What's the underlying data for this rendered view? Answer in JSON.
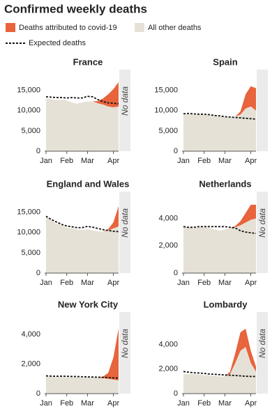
{
  "title": "Confirmed weekly deaths",
  "chart_data": [
    {
      "type": "area",
      "title": "France",
      "categories": [
        "Jan",
        null,
        null,
        null,
        "Feb",
        null,
        null,
        null,
        "Mar",
        null,
        null,
        null,
        null,
        "Apr",
        null
      ],
      "series": [
        {
          "name": "All other deaths",
          "color": "#e6e1d6",
          "values": [
            13000,
            12800,
            12600,
            12700,
            12500,
            12000,
            11700,
            12000,
            12200,
            12300,
            11800,
            11500,
            11000,
            10800,
            11000
          ]
        },
        {
          "name": "Deaths attributed to covid-19",
          "color": "#e8643c",
          "values": [
            0,
            0,
            0,
            0,
            0,
            0,
            0,
            0,
            0,
            0,
            500,
            1500,
            3000,
            4500,
            6000
          ]
        },
        {
          "name": "Expected deaths",
          "color": "#111111",
          "style": "dashed",
          "values": [
            13400,
            13300,
            13200,
            13200,
            13100,
            13200,
            13100,
            13100,
            13500,
            13400,
            12700,
            12200,
            11900,
            11800,
            11700
          ]
        }
      ],
      "ylim": [
        0,
        17500
      ],
      "yticks": [
        0,
        {
          "value": 5000,
          "label": "5,000"
        },
        {
          "value": 10000,
          "label": "10,000"
        },
        {
          "value": 15000,
          "label": "15,000"
        }
      ],
      "annotation": "No data"
    },
    {
      "type": "area",
      "title": "Spain",
      "categories": [
        "Jan",
        null,
        null,
        null,
        "Feb",
        null,
        null,
        null,
        "Mar",
        null,
        null,
        null,
        null,
        "Apr",
        null
      ],
      "series": [
        {
          "name": "All other deaths",
          "color": "#e6e1d6",
          "values": [
            9000,
            9100,
            9100,
            9000,
            9000,
            8900,
            8800,
            8600,
            8400,
            8300,
            8500,
            9000,
            10500,
            11000,
            10000
          ]
        },
        {
          "name": "Deaths attributed to covid-19",
          "color": "#e8643c",
          "values": [
            0,
            0,
            0,
            0,
            0,
            0,
            0,
            0,
            0,
            0,
            0,
            800,
            3500,
            5000,
            5500
          ]
        },
        {
          "name": "Expected deaths",
          "color": "#111111",
          "style": "dashed",
          "values": [
            9200,
            9300,
            9200,
            9100,
            9100,
            9000,
            8800,
            8700,
            8500,
            8400,
            8300,
            8200,
            8100,
            8000,
            7900
          ]
        }
      ],
      "ylim": [
        0,
        17500
      ],
      "yticks": [
        0,
        {
          "value": 5000,
          "label": "5,000"
        },
        {
          "value": 10000,
          "label": "10,000"
        },
        {
          "value": 15000,
          "label": "15,000"
        }
      ]
    },
    {
      "type": "area",
      "title": "England and Wales",
      "categories": [
        "Jan",
        null,
        null,
        null,
        "Feb",
        null,
        null,
        null,
        "Mar",
        null,
        null,
        null,
        null,
        "Apr",
        null
      ],
      "series": [
        {
          "name": "All other deaths",
          "color": "#e6e1d6",
          "values": [
            13800,
            13000,
            12200,
            11800,
            11200,
            11000,
            10800,
            10600,
            10800,
            10500,
            10300,
            10200,
            10500,
            11000,
            11500
          ]
        },
        {
          "name": "Deaths attributed to covid-19",
          "color": "#e8643c",
          "values": [
            0,
            0,
            0,
            0,
            0,
            0,
            0,
            0,
            0,
            0,
            0,
            0,
            300,
            1500,
            5000
          ]
        },
        {
          "name": "Expected deaths",
          "color": "#111111",
          "style": "dashed",
          "values": [
            14000,
            13200,
            12600,
            12000,
            11600,
            11400,
            11200,
            11200,
            11500,
            11300,
            11000,
            10700,
            10500,
            10300,
            10200
          ]
        }
      ],
      "ylim": [
        0,
        17500
      ],
      "yticks": [
        0,
        {
          "value": 5000,
          "label": "5,000"
        },
        {
          "value": 10000,
          "label": "10,000"
        },
        {
          "value": 15000,
          "label": "15,000"
        }
      ],
      "annotation": "No data"
    },
    {
      "type": "area",
      "title": "Netherlands",
      "categories": [
        "Jan",
        null,
        null,
        null,
        "Feb",
        null,
        null,
        null,
        "Mar",
        null,
        null,
        null,
        null,
        "Apr",
        null
      ],
      "series": [
        {
          "name": "All other deaths",
          "color": "#e6e1d6",
          "values": [
            3400,
            3350,
            3300,
            3350,
            3350,
            3300,
            3200,
            3100,
            3200,
            3300,
            3350,
            3500,
            3700,
            3900,
            4000
          ]
        },
        {
          "name": "Deaths attributed to covid-19",
          "color": "#e8643c",
          "values": [
            0,
            0,
            0,
            0,
            0,
            0,
            0,
            0,
            0,
            0,
            100,
            300,
            700,
            1100,
            1000
          ]
        },
        {
          "name": "Expected deaths",
          "color": "#111111",
          "style": "dashed",
          "values": [
            3400,
            3350,
            3350,
            3400,
            3400,
            3400,
            3400,
            3400,
            3400,
            3350,
            3300,
            3100,
            3000,
            2950,
            2900
          ]
        }
      ],
      "ylim": [
        0,
        5200
      ],
      "yticks": [
        0,
        {
          "value": 2000,
          "label": "2,000"
        },
        {
          "value": 4000,
          "label": "4,000"
        }
      ],
      "annotation": "No data"
    },
    {
      "type": "area",
      "title": "New York City",
      "categories": [
        "Jan",
        null,
        null,
        null,
        "Feb",
        null,
        null,
        null,
        "Mar",
        null,
        null,
        null,
        null,
        "Apr",
        null
      ],
      "series": [
        {
          "name": "All other deaths",
          "color": "#e6e1d6",
          "values": [
            1150,
            1150,
            1120,
            1130,
            1120,
            1100,
            1100,
            1080,
            1100,
            1100,
            1100,
            1050,
            1000,
            950,
            900
          ]
        },
        {
          "name": "Deaths attributed to covid-19",
          "color": "#e8643c",
          "values": [
            0,
            0,
            0,
            0,
            0,
            0,
            0,
            0,
            0,
            0,
            0,
            100,
            400,
            1500,
            3500
          ]
        },
        {
          "name": "Expected deaths",
          "color": "#111111",
          "style": "dashed",
          "values": [
            1200,
            1180,
            1170,
            1180,
            1170,
            1160,
            1150,
            1140,
            1130,
            1120,
            1110,
            1100,
            1080,
            1060,
            1050
          ]
        }
      ],
      "ylim": [
        0,
        4800
      ],
      "yticks": [
        0,
        {
          "value": 2000,
          "label": "2,000"
        },
        {
          "value": 4000,
          "label": "4,000"
        }
      ],
      "annotation": "No data"
    },
    {
      "type": "area",
      "title": "Lombardy",
      "categories": [
        "Jan",
        null,
        null,
        null,
        "Feb",
        null,
        null,
        null,
        "Mar",
        null,
        null,
        null,
        null,
        "Apr",
        null
      ],
      "series": [
        {
          "name": "All other deaths",
          "color": "#e6e1d6",
          "values": [
            1600,
            1600,
            1600,
            1550,
            1500,
            1500,
            1450,
            1400,
            1400,
            1600,
            2500,
            3500,
            3800,
            2500,
            1800
          ]
        },
        {
          "name": "Deaths attributed to covid-19",
          "color": "#e8643c",
          "values": [
            0,
            0,
            0,
            0,
            0,
            0,
            0,
            0,
            0,
            200,
            800,
            1500,
            1500,
            1000,
            400
          ]
        },
        {
          "name": "Expected deaths",
          "color": "#111111",
          "style": "dashed",
          "values": [
            1800,
            1750,
            1700,
            1680,
            1650,
            1600,
            1580,
            1550,
            1520,
            1500,
            1480,
            1450,
            1420,
            1400,
            1400
          ]
        }
      ],
      "ylim": [
        0,
        5800
      ],
      "yticks": [
        0,
        {
          "value": 2000,
          "label": "2,000"
        },
        {
          "value": 4000,
          "label": "4,000"
        }
      ],
      "annotation": "No data"
    }
  ]
}
